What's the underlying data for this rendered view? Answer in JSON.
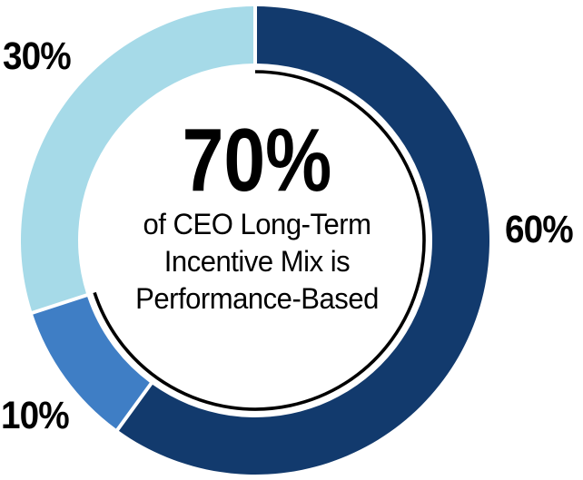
{
  "chart_data": {
    "type": "pie",
    "subtype": "donut",
    "title": "",
    "direction": "clockwise",
    "start_angle_deg": 0,
    "legend_position": "none",
    "segments": [
      {
        "label": "60%",
        "value": 60,
        "color": "#123A6D"
      },
      {
        "label": "10%",
        "value": 10,
        "color": "#3F7EC5"
      },
      {
        "label": "30%",
        "value": 30,
        "color": "#A6DAE8"
      }
    ],
    "segment_gap_color": "#FFFFFF",
    "inner_arc": {
      "covers_percent": 70,
      "color": "#000000",
      "meaning": "70%"
    },
    "center_annotation": {
      "headline": "70%",
      "lines": [
        "of CEO Long-Term",
        "Incentive Mix is",
        "Performance-Based"
      ]
    }
  },
  "colors": {
    "background": "#FFFFFF",
    "text": "#000000"
  }
}
